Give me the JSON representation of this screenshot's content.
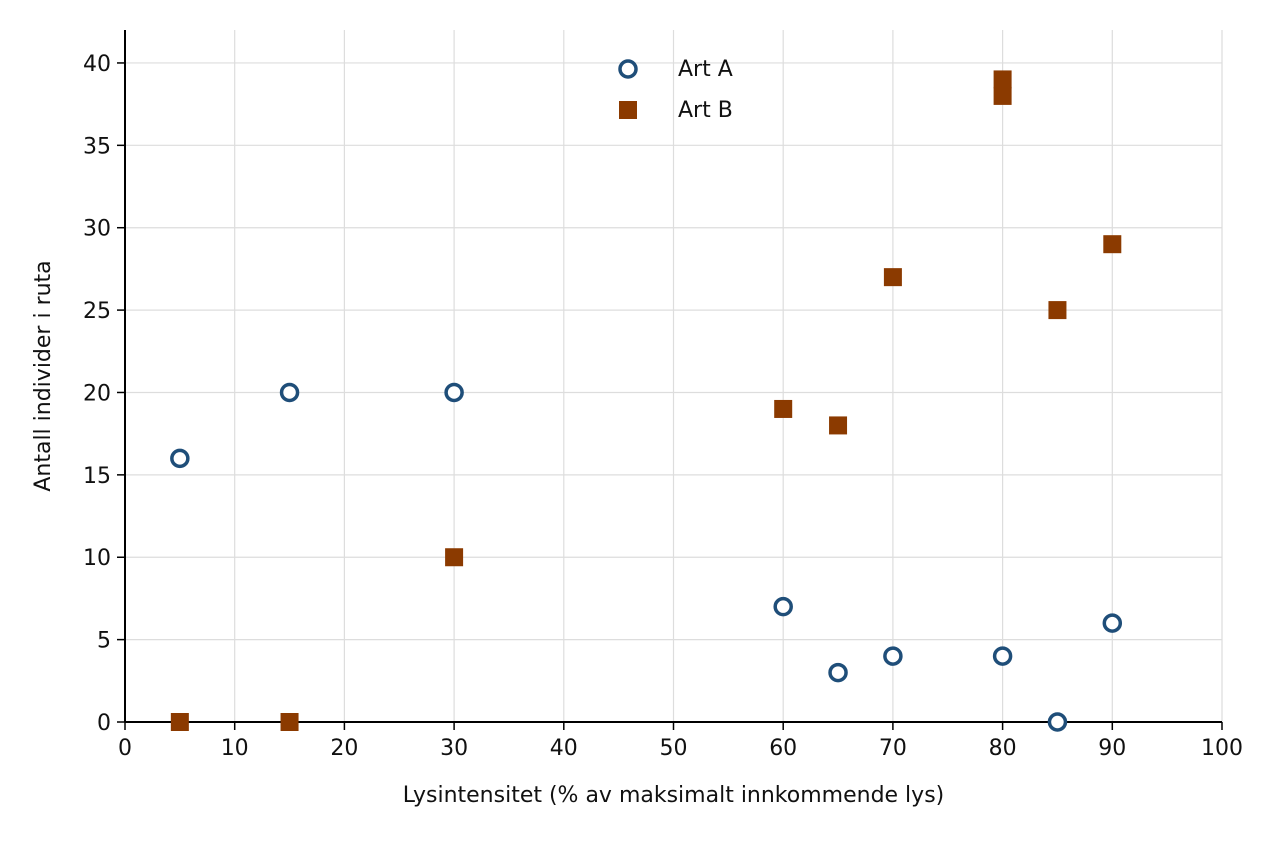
{
  "chart_data": {
    "type": "scatter",
    "title": "",
    "xlabel": "Lysintensitet (% av maksimalt innkommende lys)",
    "ylabel": "Antall individer i ruta",
    "xlim": [
      0,
      100
    ],
    "ylim": [
      0,
      42
    ],
    "xticks": [
      0,
      10,
      20,
      30,
      40,
      50,
      60,
      70,
      80,
      90,
      100
    ],
    "yticks": [
      0,
      5,
      10,
      15,
      20,
      25,
      30,
      35,
      40
    ],
    "grid": true,
    "legend_position": "top-center",
    "series": [
      {
        "name": "Art A",
        "marker": "open-circle",
        "color": "#1f4e79",
        "x": [
          5,
          15,
          30,
          60,
          65,
          70,
          80,
          85,
          90
        ],
        "y": [
          16,
          20,
          20,
          7,
          3,
          4,
          4,
          0,
          6
        ]
      },
      {
        "name": "Art B",
        "marker": "filled-square",
        "color": "#8b3a00",
        "x": [
          5,
          15,
          30,
          60,
          65,
          70,
          80,
          80,
          85,
          90
        ],
        "y": [
          0,
          0,
          10,
          19,
          18,
          27,
          38,
          39,
          25,
          29
        ]
      }
    ]
  }
}
